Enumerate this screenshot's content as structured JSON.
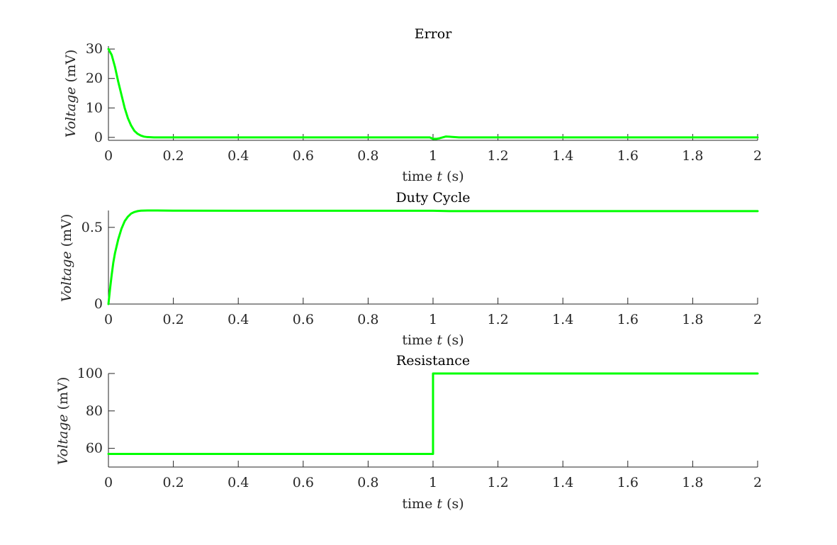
{
  "chart_data": [
    {
      "type": "line",
      "title": "Error",
      "xlabel_text": "time",
      "xlabel_var": "t",
      "xlabel_unit": "(s)",
      "ylabel_var": "Voltage",
      "ylabel_unit": "(mV)",
      "xlim": [
        0,
        2
      ],
      "ylim": [
        -1,
        31
      ],
      "xticks": [
        0,
        0.2,
        0.4,
        0.6,
        0.8,
        1,
        1.2,
        1.4,
        1.6,
        1.8,
        2
      ],
      "xtick_labels": [
        "0",
        "0.2",
        "0.4",
        "0.6",
        "0.8",
        "1",
        "1.2",
        "1.4",
        "1.6",
        "1.8",
        "2"
      ],
      "yticks": [
        0,
        10,
        20,
        30
      ],
      "ytick_labels": [
        "0",
        "10",
        "20",
        "30"
      ],
      "grid": false,
      "color": "#00ff00",
      "series": [
        {
          "x": [
            0,
            0.01,
            0.02,
            0.03,
            0.04,
            0.05,
            0.06,
            0.07,
            0.08,
            0.09,
            0.1,
            0.11,
            0.12,
            0.14,
            0.2,
            0.4,
            0.6,
            0.8,
            0.99,
            1.0,
            1.01,
            1.02,
            1.04,
            1.08,
            1.2,
            1.4,
            1.6,
            1.8,
            2
          ],
          "y": [
            30,
            28,
            24,
            19,
            14.5,
            10,
            6.5,
            4,
            2.2,
            1.2,
            0.6,
            0.25,
            0.1,
            0,
            0,
            0,
            0,
            0,
            0,
            -0.5,
            -0.5,
            -0.3,
            0.3,
            0,
            0,
            0,
            0,
            0,
            0
          ]
        }
      ]
    },
    {
      "type": "line",
      "title": "Duty Cycle",
      "xlabel_text": "time",
      "xlabel_var": "t",
      "xlabel_unit": "(s)",
      "ylabel_var": "Voltage",
      "ylabel_unit": "(mV)",
      "xlim": [
        0,
        2
      ],
      "ylim": [
        0,
        0.61
      ],
      "xticks": [
        0,
        0.2,
        0.4,
        0.6,
        0.8,
        1,
        1.2,
        1.4,
        1.6,
        1.8,
        2
      ],
      "xtick_labels": [
        "0",
        "0.2",
        "0.4",
        "0.6",
        "0.8",
        "1",
        "1.2",
        "1.4",
        "1.6",
        "1.8",
        "2"
      ],
      "yticks": [
        0,
        0.5
      ],
      "ytick_labels": [
        "0",
        "0.5"
      ],
      "grid": false,
      "color": "#00ff00",
      "series": [
        {
          "x": [
            0,
            0.005,
            0.01,
            0.015,
            0.02,
            0.03,
            0.04,
            0.05,
            0.06,
            0.07,
            0.08,
            0.09,
            0.1,
            0.12,
            0.15,
            0.2,
            0.4,
            0.6,
            0.8,
            1.0,
            1.05,
            1.2,
            1.4,
            1.6,
            1.8,
            2
          ],
          "y": [
            0,
            0.1,
            0.19,
            0.27,
            0.33,
            0.42,
            0.49,
            0.54,
            0.57,
            0.59,
            0.6,
            0.606,
            0.609,
            0.61,
            0.61,
            0.609,
            0.608,
            0.608,
            0.608,
            0.608,
            0.606,
            0.606,
            0.606,
            0.606,
            0.606,
            0.606
          ]
        }
      ]
    },
    {
      "type": "line",
      "title": "Resistance",
      "xlabel_text": "time",
      "xlabel_var": "t",
      "xlabel_unit": "(s)",
      "ylabel_var": "Voltage",
      "ylabel_unit": "(mV)",
      "xlim": [
        0,
        2
      ],
      "ylim": [
        50,
        100
      ],
      "xticks": [
        0,
        0.2,
        0.4,
        0.6,
        0.8,
        1,
        1.2,
        1.4,
        1.6,
        1.8,
        2
      ],
      "xtick_labels": [
        "0",
        "0.2",
        "0.4",
        "0.6",
        "0.8",
        "1",
        "1.2",
        "1.4",
        "1.6",
        "1.8",
        "2"
      ],
      "yticks": [
        60,
        80,
        100
      ],
      "ytick_labels": [
        "60",
        "80",
        "100"
      ],
      "grid": false,
      "color": "#00ff00",
      "series": [
        {
          "x": [
            0,
            1,
            1,
            2
          ],
          "y": [
            57,
            57,
            100,
            100
          ]
        }
      ]
    }
  ]
}
